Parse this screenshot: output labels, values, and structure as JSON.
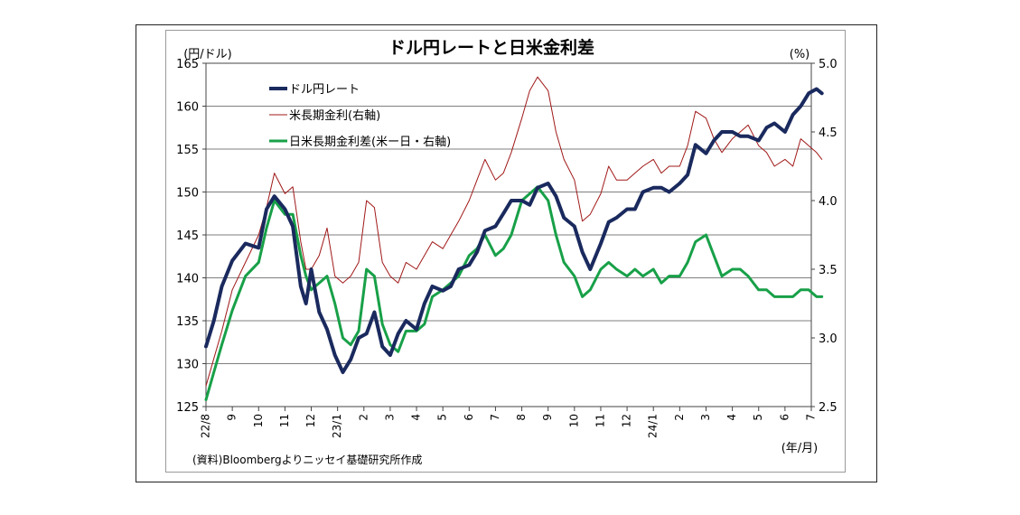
{
  "chart_data": {
    "type": "line",
    "title": "ドル円レートと日米金利差",
    "left_axis_unit": "(円/ドル)",
    "right_axis_unit": "(%)",
    "x_unit": "(年/月)",
    "source": "(資料)Bloombergよりニッセイ基礎研究所作成",
    "x_ticks": [
      "22/8",
      "9",
      "10",
      "11",
      "12",
      "23/1",
      "2",
      "3",
      "4",
      "5",
      "6",
      "7",
      "8",
      "9",
      "10",
      "11",
      "12",
      "24/1",
      "2",
      "3",
      "4",
      "5",
      "6",
      "7"
    ],
    "ylim_left": [
      125,
      165
    ],
    "yticks_left": [
      "165",
      "160",
      "155",
      "150",
      "145",
      "140",
      "135",
      "130",
      "125"
    ],
    "ylim_right": [
      2.5,
      5.0
    ],
    "yticks_right": [
      "5.0",
      "4.5",
      "4.0",
      "3.5",
      "3.0",
      "2.5"
    ],
    "grid": "horizontal",
    "legend_position": "top-left",
    "series": [
      {
        "name": "ドル円レート",
        "axis": "left",
        "color": "#1a2a5e",
        "x": [
          0,
          0.3,
          0.6,
          1.0,
          1.5,
          2.0,
          2.3,
          2.6,
          3.0,
          3.3,
          3.6,
          3.8,
          4.0,
          4.3,
          4.6,
          4.9,
          5.2,
          5.5,
          5.8,
          6.1,
          6.4,
          6.7,
          7.0,
          7.3,
          7.6,
          8.0,
          8.3,
          8.6,
          9.0,
          9.3,
          9.6,
          10.0,
          10.3,
          10.6,
          11.0,
          11.3,
          11.6,
          12.0,
          12.3,
          12.6,
          13.0,
          13.3,
          13.6,
          14.0,
          14.3,
          14.6,
          15.0,
          15.3,
          15.6,
          16.0,
          16.3,
          16.6,
          17.0,
          17.3,
          17.6,
          18.0,
          18.3,
          18.6,
          19.0,
          19.3,
          19.6,
          20.0,
          20.3,
          20.6,
          21.0,
          21.3,
          21.6,
          22.0,
          22.3,
          22.6,
          22.9,
          23.2,
          23.4
        ],
        "values": [
          132,
          135,
          139,
          142,
          144,
          143.5,
          148,
          149.5,
          148,
          146,
          139,
          137,
          141,
          136,
          134,
          131,
          129,
          130.5,
          133,
          133.5,
          136,
          132,
          131,
          133.5,
          135,
          134,
          137,
          139,
          138.5,
          139,
          141,
          141.5,
          143,
          145.5,
          146,
          147.5,
          149,
          149,
          148.5,
          150.5,
          151,
          149.5,
          147,
          146,
          143,
          141,
          144,
          146.5,
          147,
          148,
          148,
          150,
          150.5,
          150.5,
          150,
          151,
          152,
          155.5,
          154.5,
          156,
          157,
          157,
          156.5,
          156.5,
          156,
          157.5,
          158,
          157,
          159,
          160,
          161.5,
          162,
          161.5
        ]
      },
      {
        "name": "米長期金利(右軸)",
        "axis": "right",
        "color": "#a01818",
        "x": [
          0,
          0.3,
          0.6,
          1.0,
          1.5,
          2.0,
          2.3,
          2.6,
          3.0,
          3.3,
          3.6,
          3.8,
          4.0,
          4.3,
          4.6,
          4.9,
          5.2,
          5.5,
          5.8,
          6.1,
          6.4,
          6.7,
          7.0,
          7.3,
          7.6,
          8.0,
          8.3,
          8.6,
          9.0,
          9.3,
          9.6,
          10.0,
          10.3,
          10.6,
          11.0,
          11.3,
          11.6,
          12.0,
          12.3,
          12.6,
          13.0,
          13.3,
          13.6,
          14.0,
          14.3,
          14.6,
          15.0,
          15.3,
          15.6,
          16.0,
          16.3,
          16.6,
          17.0,
          17.3,
          17.6,
          18.0,
          18.3,
          18.6,
          19.0,
          19.3,
          19.6,
          20.0,
          20.3,
          20.6,
          21.0,
          21.3,
          21.6,
          22.0,
          22.3,
          22.6,
          22.9,
          23.2,
          23.4
        ],
        "values": [
          2.65,
          2.85,
          3.05,
          3.35,
          3.55,
          3.75,
          3.95,
          4.2,
          4.05,
          4.1,
          3.7,
          3.5,
          3.5,
          3.6,
          3.8,
          3.45,
          3.4,
          3.45,
          3.55,
          4.0,
          3.95,
          3.55,
          3.45,
          3.4,
          3.55,
          3.5,
          3.6,
          3.7,
          3.65,
          3.75,
          3.85,
          4.0,
          4.15,
          4.3,
          4.15,
          4.2,
          4.35,
          4.6,
          4.8,
          4.9,
          4.8,
          4.5,
          4.3,
          4.15,
          3.85,
          3.9,
          4.05,
          4.25,
          4.15,
          4.15,
          4.2,
          4.25,
          4.3,
          4.2,
          4.25,
          4.25,
          4.4,
          4.65,
          4.6,
          4.45,
          4.35,
          4.45,
          4.5,
          4.55,
          4.4,
          4.35,
          4.25,
          4.3,
          4.25,
          4.45,
          4.4,
          4.35,
          4.3
        ]
      },
      {
        "name": "日米長期金利差(米ー日・右軸)",
        "axis": "right",
        "color": "#18a048",
        "x": [
          0,
          0.3,
          0.6,
          1.0,
          1.5,
          2.0,
          2.3,
          2.6,
          3.0,
          3.3,
          3.6,
          3.8,
          4.0,
          4.3,
          4.6,
          4.9,
          5.2,
          5.5,
          5.8,
          6.1,
          6.4,
          6.7,
          7.0,
          7.3,
          7.6,
          8.0,
          8.3,
          8.6,
          9.0,
          9.3,
          9.6,
          10.0,
          10.3,
          10.6,
          11.0,
          11.3,
          11.6,
          12.0,
          12.3,
          12.6,
          13.0,
          13.3,
          13.6,
          14.0,
          14.3,
          14.6,
          15.0,
          15.3,
          15.6,
          16.0,
          16.3,
          16.6,
          17.0,
          17.3,
          17.6,
          18.0,
          18.3,
          18.6,
          19.0,
          19.3,
          19.6,
          20.0,
          20.3,
          20.6,
          21.0,
          21.3,
          21.6,
          22.0,
          22.3,
          22.6,
          22.9,
          23.2,
          23.4
        ],
        "values": [
          2.55,
          2.75,
          2.95,
          3.2,
          3.45,
          3.55,
          3.8,
          4.0,
          3.9,
          3.9,
          3.6,
          3.45,
          3.35,
          3.4,
          3.45,
          3.25,
          3.0,
          2.95,
          3.05,
          3.5,
          3.45,
          3.1,
          2.95,
          2.9,
          3.05,
          3.05,
          3.1,
          3.3,
          3.35,
          3.4,
          3.45,
          3.6,
          3.65,
          3.75,
          3.6,
          3.65,
          3.75,
          4.0,
          4.05,
          4.1,
          4.0,
          3.75,
          3.55,
          3.45,
          3.3,
          3.35,
          3.5,
          3.55,
          3.5,
          3.45,
          3.5,
          3.45,
          3.5,
          3.4,
          3.45,
          3.45,
          3.55,
          3.7,
          3.75,
          3.6,
          3.45,
          3.5,
          3.5,
          3.45,
          3.35,
          3.35,
          3.3,
          3.3,
          3.3,
          3.35,
          3.35,
          3.3,
          3.3
        ]
      }
    ]
  }
}
